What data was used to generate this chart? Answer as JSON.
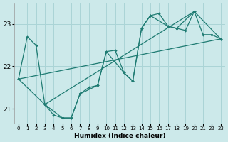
{
  "xlabel": "Humidex (Indice chaleur)",
  "bg_color": "#cce9ea",
  "grid_color": "#aad4d6",
  "line_color": "#1e7b72",
  "xlim": [
    -0.5,
    23.5
  ],
  "ylim": [
    20.65,
    23.5
  ],
  "yticks": [
    21,
    22,
    23
  ],
  "xticks": [
    0,
    1,
    2,
    3,
    4,
    5,
    6,
    7,
    8,
    9,
    10,
    11,
    12,
    13,
    14,
    15,
    16,
    17,
    18,
    19,
    20,
    21,
    22,
    23
  ],
  "line1_x": [
    0,
    1,
    2,
    3,
    4,
    5,
    6,
    7,
    8,
    9,
    10,
    11,
    12,
    13,
    14,
    15,
    16,
    17,
    18,
    19,
    20,
    21,
    22,
    23
  ],
  "line1_y": [
    21.7,
    22.7,
    22.5,
    21.1,
    20.85,
    20.78,
    20.78,
    21.35,
    21.5,
    21.55,
    22.35,
    22.38,
    21.85,
    21.65,
    22.9,
    23.2,
    23.25,
    22.95,
    22.9,
    22.85,
    23.3,
    22.75,
    22.75,
    22.65
  ],
  "line2_x": [
    0,
    3,
    5,
    6,
    7,
    9,
    10,
    12,
    13,
    14,
    15,
    17,
    18,
    20,
    23
  ],
  "line2_y": [
    21.7,
    21.1,
    20.78,
    20.78,
    21.35,
    21.55,
    22.35,
    21.85,
    21.65,
    22.9,
    23.2,
    22.95,
    22.9,
    23.3,
    22.65
  ],
  "trend1_x": [
    0,
    23
  ],
  "trend1_y": [
    21.7,
    22.65
  ],
  "trend2_x": [
    3,
    20
  ],
  "trend2_y": [
    21.1,
    23.3
  ]
}
